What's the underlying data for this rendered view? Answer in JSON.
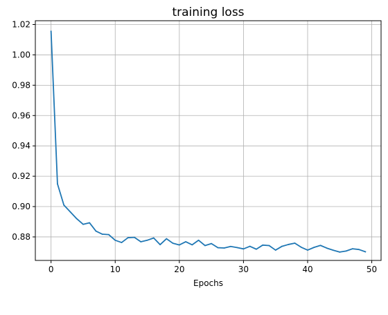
{
  "chart_data": {
    "type": "line",
    "title": "training loss",
    "xlabel": "Epochs",
    "ylabel": "",
    "xlim": [
      -2.45,
      51.45
    ],
    "ylim": [
      0.8645,
      1.0225
    ],
    "xticks": [
      0,
      10,
      20,
      30,
      40,
      50
    ],
    "yticks": [
      0.88,
      0.9,
      0.92,
      0.94,
      0.96,
      0.98,
      1.0,
      1.02
    ],
    "xtick_labels": [
      "0",
      "10",
      "20",
      "30",
      "40",
      "50"
    ],
    "ytick_labels": [
      "0.88",
      "0.90",
      "0.92",
      "0.94",
      "0.96",
      "0.98",
      "1.00",
      "1.02"
    ],
    "grid": true,
    "line_color": "#1f77b4",
    "series": [
      {
        "x": [
          0,
          1,
          2,
          3,
          4,
          5,
          6,
          7,
          8,
          9,
          10,
          11,
          12,
          13,
          14,
          15,
          16,
          17,
          18,
          19,
          20,
          21,
          22,
          23,
          24,
          25,
          26,
          27,
          28,
          29,
          30,
          31,
          32,
          33,
          34,
          35,
          36,
          37,
          38,
          39,
          40,
          41,
          42,
          43,
          44,
          45,
          46,
          47,
          48,
          49
        ],
        "values": [
          1.0155,
          0.915,
          0.901,
          0.8965,
          0.892,
          0.8883,
          0.8893,
          0.8838,
          0.8818,
          0.8815,
          0.8778,
          0.8763,
          0.8795,
          0.8797,
          0.8768,
          0.8778,
          0.8793,
          0.8749,
          0.8788,
          0.8758,
          0.8747,
          0.8768,
          0.8748,
          0.8778,
          0.8743,
          0.8756,
          0.8729,
          0.8727,
          0.8737,
          0.873,
          0.8721,
          0.8738,
          0.8719,
          0.8746,
          0.8743,
          0.8713,
          0.8738,
          0.875,
          0.8759,
          0.8732,
          0.8713,
          0.8731,
          0.8744,
          0.8726,
          0.8712,
          0.87,
          0.8707,
          0.8722,
          0.8717,
          0.8702
        ]
      }
    ]
  }
}
